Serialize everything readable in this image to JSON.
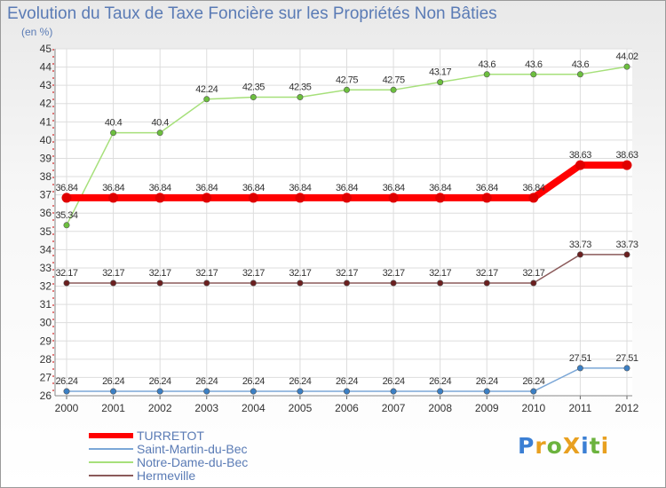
{
  "title": "Evolution du Taux de Taxe Foncière sur les Propriétés Non Bâties",
  "subtitle": "(en %)",
  "logo": "ProXiti",
  "chart_data": {
    "type": "line",
    "title": "Evolution du Taux de Taxe Foncière sur les Propriétés Non Bâties",
    "ylabel": "(en %)",
    "xlabel": "",
    "x": [
      2000,
      2001,
      2002,
      2003,
      2004,
      2005,
      2006,
      2007,
      2008,
      2009,
      2010,
      2011,
      2012
    ],
    "ylim": [
      26,
      45
    ],
    "yticks": [
      26,
      27,
      28,
      29,
      30,
      31,
      32,
      33,
      34,
      35,
      36,
      37,
      38,
      39,
      40,
      41,
      42,
      43,
      44,
      45
    ],
    "grid": true,
    "legend_position": "bottom-left",
    "series": [
      {
        "name": "TURRETOT",
        "color": "#ff0000",
        "marker_color": "#e00000",
        "values": [
          36.84,
          36.84,
          36.84,
          36.84,
          36.84,
          36.84,
          36.84,
          36.84,
          36.84,
          36.84,
          36.84,
          38.63,
          38.63
        ],
        "labels": [
          "36.84",
          "36.84",
          "36.84",
          "36.84",
          "36.84",
          "36.84",
          "36.84",
          "36.84",
          "36.84",
          "36.84",
          "36.84",
          "38.63",
          "38.63"
        ]
      },
      {
        "name": "Saint-Martin-du-Bec",
        "color": "#7ba7d7",
        "marker_color": "#3b7fc4",
        "values": [
          26.24,
          26.24,
          26.24,
          26.24,
          26.24,
          26.24,
          26.24,
          26.24,
          26.24,
          26.24,
          26.24,
          27.51,
          27.51
        ],
        "labels": [
          "26.24",
          "26.24",
          "26.24",
          "26.24",
          "26.24",
          "26.24",
          "26.24",
          "26.24",
          "26.24",
          "26.24",
          "26.24",
          "27.51",
          "27.51"
        ]
      },
      {
        "name": "Notre-Dame-du-Bec",
        "color": "#a6e07a",
        "marker_color": "#6cbf3e",
        "values": [
          35.34,
          40.4,
          40.4,
          42.24,
          42.35,
          42.35,
          42.75,
          42.75,
          43.17,
          43.6,
          43.6,
          43.6,
          44.02
        ],
        "labels": [
          "35.34",
          "40.4",
          "40.4",
          "42.24",
          "42.35",
          "42.35",
          "42.75",
          "42.75",
          "43.17",
          "43.6",
          "43.6",
          "43.6",
          "44.02"
        ]
      },
      {
        "name": "Hermeville",
        "color": "#8b5a5a",
        "marker_color": "#6b1f1f",
        "values": [
          32.17,
          32.17,
          32.17,
          32.17,
          32.17,
          32.17,
          32.17,
          32.17,
          32.17,
          32.17,
          32.17,
          33.73,
          33.73
        ],
        "labels": [
          "32.17",
          "32.17",
          "32.17",
          "32.17",
          "32.17",
          "32.17",
          "32.17",
          "32.17",
          "32.17",
          "32.17",
          "32.17",
          "33.73",
          "33.73"
        ]
      }
    ]
  }
}
